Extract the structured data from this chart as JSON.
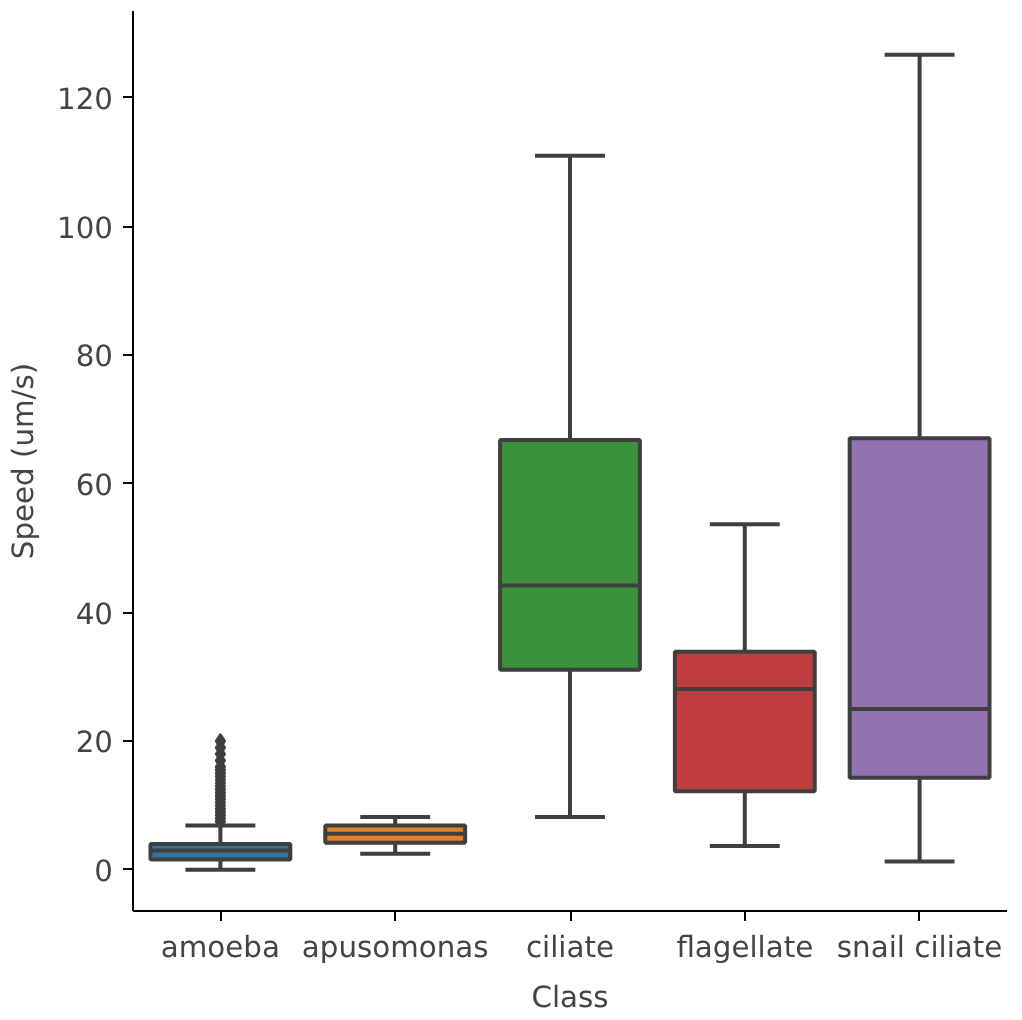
{
  "chart_data": {
    "type": "box",
    "xlabel": "Class",
    "ylabel": "Speed (um/s)",
    "categories": [
      "amoeba",
      "apusomonas",
      "ciliate",
      "flagellate",
      "snail ciliate"
    ],
    "colors": [
      "#3274a1",
      "#e1812c",
      "#3a923a",
      "#c03d3e",
      "#9372b2"
    ],
    "boxes": [
      {
        "low": 0,
        "q1": 1.6,
        "median": 3.0,
        "q3": 4.0,
        "high": 6.9,
        "outliers": [
          7.5,
          8,
          8.5,
          9,
          9.5,
          10,
          10.5,
          11,
          11.5,
          12,
          12.5,
          13,
          13.5,
          14,
          14.5,
          15,
          15.5,
          16,
          17,
          18,
          19,
          20
        ]
      },
      {
        "low": 2.5,
        "q1": 4.2,
        "median": 5.6,
        "q3": 6.9,
        "high": 8.2
      },
      {
        "low": 8.2,
        "q1": 31.1,
        "median": 44.2,
        "q3": 66.8,
        "high": 111.0
      },
      {
        "low": 3.7,
        "q1": 12.2,
        "median": 28.1,
        "q3": 33.9,
        "high": 53.7
      },
      {
        "low": 1.3,
        "q1": 14.3,
        "median": 25.0,
        "q3": 67.1,
        "high": 126.7
      }
    ],
    "ylim": [
      -6.4,
      133.5
    ],
    "yticks": [
      0,
      20,
      40,
      60,
      80,
      100,
      120
    ],
    "grid": false,
    "marker": "diamond"
  }
}
